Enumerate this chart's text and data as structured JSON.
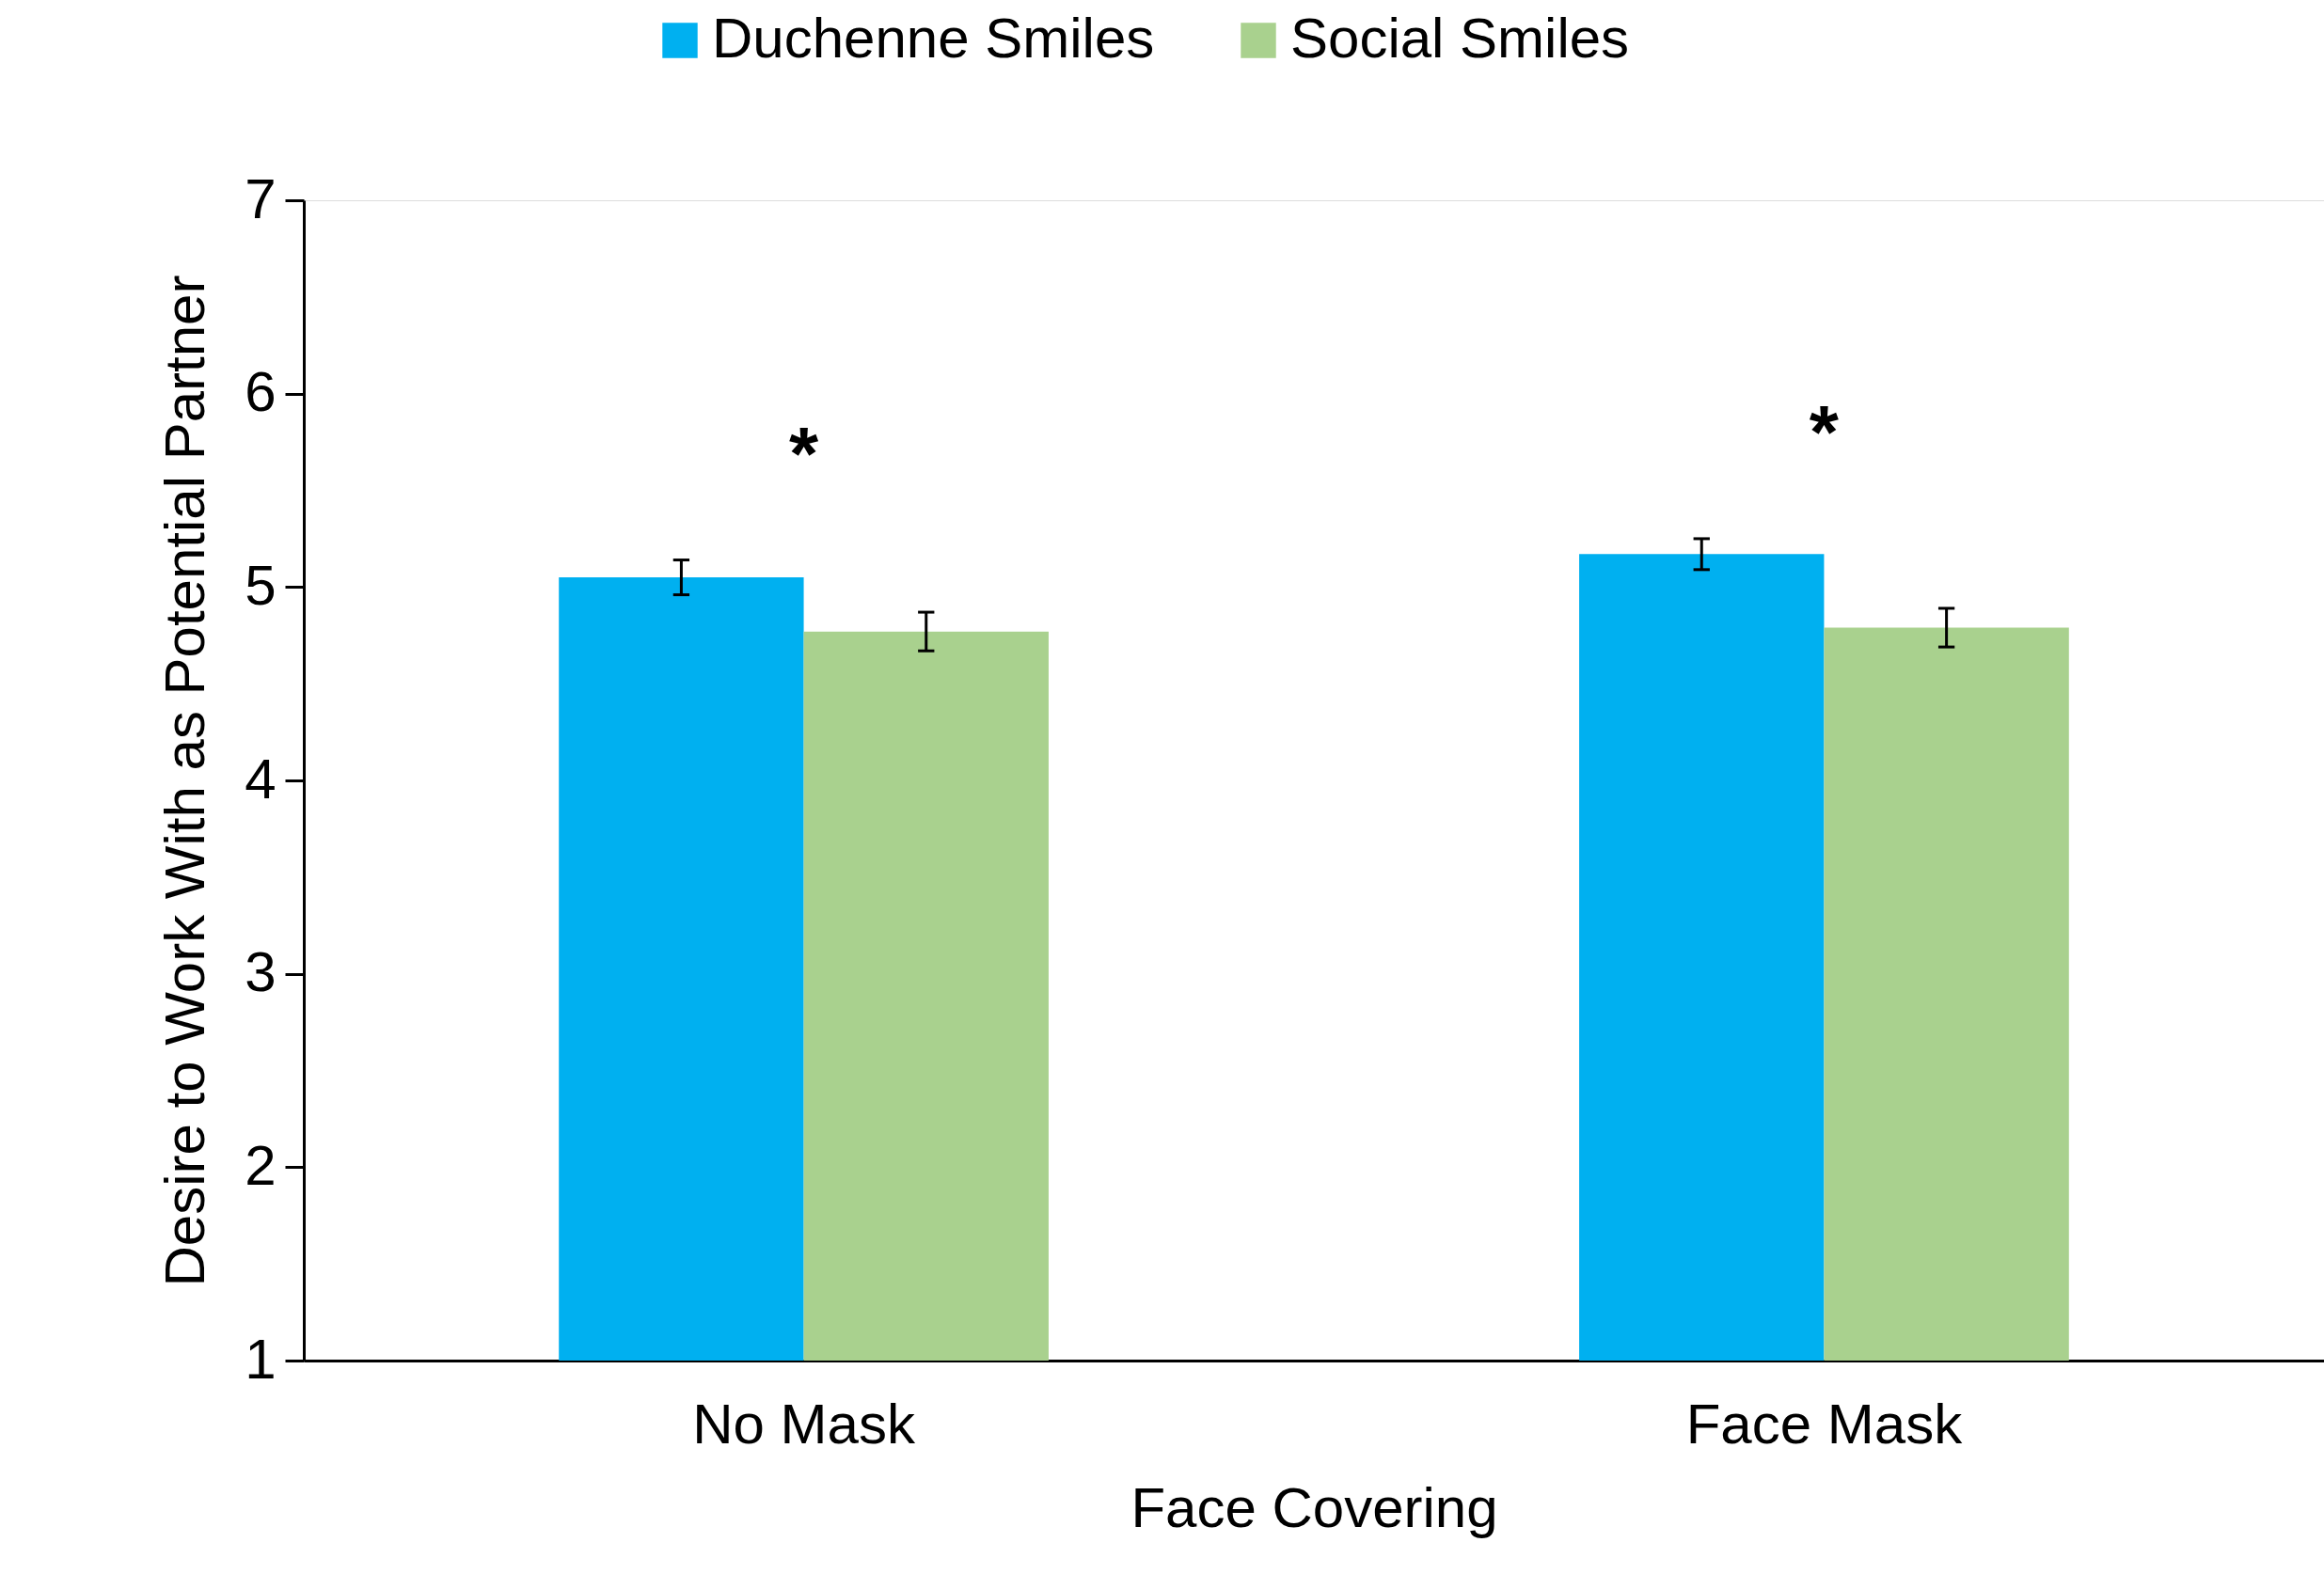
{
  "chart_data": {
    "type": "bar",
    "xlabel": "Face Covering",
    "ylabel": "Desire to Work With as Potential Partner",
    "categories": [
      "No Mask",
      "Face Mask"
    ],
    "series": [
      {
        "name": "Duchenne Smiles",
        "color": "#00b0f0",
        "values": [
          5.05,
          5.17
        ],
        "errors": [
          0.09,
          0.08
        ]
      },
      {
        "name": "Social Smiles",
        "color": "#a9d18e",
        "values": [
          4.77,
          4.79
        ],
        "errors": [
          0.1,
          0.1
        ]
      }
    ],
    "ylim": [
      1,
      7
    ],
    "yticks": [
      {
        "value": 1,
        "label": "1"
      },
      {
        "value": 2,
        "label": "2"
      },
      {
        "value": 3,
        "label": "3"
      },
      {
        "value": 4,
        "label": "4"
      },
      {
        "value": 5,
        "label": "5"
      },
      {
        "value": 6,
        "label": "6"
      },
      {
        "value": 7,
        "label": "7"
      }
    ],
    "grid": false,
    "legend": "top",
    "annotations": [
      "*",
      "*"
    ]
  }
}
